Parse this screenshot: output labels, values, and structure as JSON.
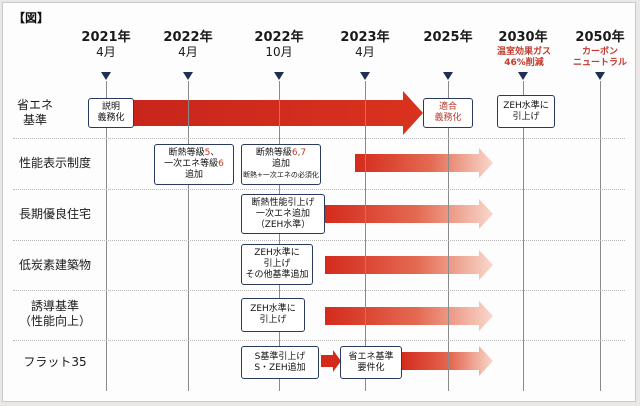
{
  "caption": "【図】",
  "timeline": [
    {
      "year": "2021年",
      "month": "4月"
    },
    {
      "year": "2022年",
      "month": "4月"
    },
    {
      "year": "2022年",
      "month": "10月"
    },
    {
      "year": "2023年",
      "month": "4月"
    },
    {
      "year": "2025年",
      "month": ""
    },
    {
      "year": "2030年",
      "month": ""
    },
    {
      "year": "2050年",
      "month": ""
    }
  ],
  "notes": {
    "y2030": [
      "温室効果ガス",
      "46%削減"
    ],
    "y2050": [
      "カーボン",
      "ニュートラル"
    ]
  },
  "rows": [
    {
      "label": [
        "省エネ",
        "基準"
      ]
    },
    {
      "label": [
        "性能表示制度"
      ]
    },
    {
      "label": [
        "長期優良住宅"
      ]
    },
    {
      "label": [
        "低炭素建築物"
      ]
    },
    {
      "label": [
        "誘導基準",
        "（性能向上）"
      ]
    },
    {
      "label": [
        "フラット35"
      ]
    }
  ],
  "boxes": {
    "b1": [
      "説明",
      "義務化"
    ],
    "b2": [
      "適合",
      "義務化"
    ],
    "b3": [
      "ZEH水準に",
      "引上げ"
    ],
    "b4a_pre": "断熱等級",
    "b4a_num": "5",
    "b4a_post": "、",
    "b4b_pre": "一次エネ等級",
    "b4b_num": "6",
    "b4c": "追加",
    "b5a_pre": "断熱等級",
    "b5a_num": "6,7",
    "b5b": "追加",
    "b5c": "断熱+一次エネの必須化",
    "b6": [
      "断熱性能引上げ",
      "一次エネ追加",
      "（ZEH水準）"
    ],
    "b7": [
      "ZEH水準に",
      "引上げ",
      "その他基準追加"
    ],
    "b8": [
      "ZEH水準に",
      "引上げ"
    ],
    "b9": [
      "S基準引上げ",
      "S・ZEH追加"
    ],
    "b10": [
      "省エネ基準",
      "要件化"
    ]
  },
  "colors": {
    "arrow_start": "#f6d2c4",
    "arrow_end": "#c8251c",
    "navy": "#1e2f55"
  }
}
